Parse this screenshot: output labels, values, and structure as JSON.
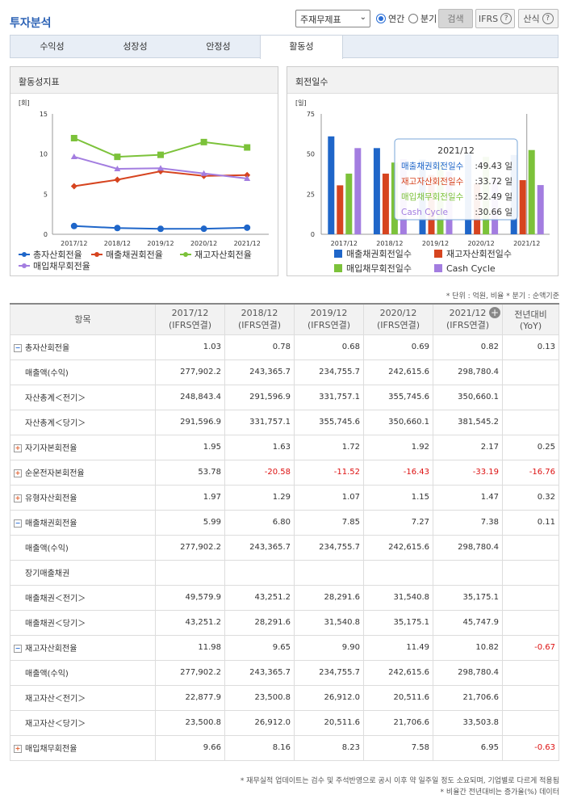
{
  "header": {
    "title": "투자분석",
    "select_value": "주재무제표",
    "radio_annual": "연간",
    "radio_quarter": "분기",
    "search_label": "검색",
    "ifrs_label": "IFRS",
    "formula_label": "산식",
    "help": "?"
  },
  "tabs": [
    {
      "label": "수익성",
      "active": false
    },
    {
      "label": "성장성",
      "active": false
    },
    {
      "label": "안정성",
      "active": false
    },
    {
      "label": "활동성",
      "active": true
    }
  ],
  "left_chart": {
    "title": "활동성지표",
    "unit": "[회]",
    "chart_data": {
      "type": "line",
      "categories": [
        "2017/12",
        "2018/12",
        "2019/12",
        "2020/12",
        "2021/12"
      ],
      "ylim": [
        0,
        15
      ],
      "yticks": [
        "15",
        "10",
        "5",
        "0"
      ],
      "series": [
        {
          "name": "총자산회전율",
          "color": "#1f66c9",
          "marker": "circle",
          "values": [
            1.03,
            0.78,
            0.68,
            0.69,
            0.82
          ]
        },
        {
          "name": "매출채권회전율",
          "color": "#d6441f",
          "marker": "diamond",
          "values": [
            5.99,
            6.8,
            7.85,
            7.27,
            7.38
          ]
        },
        {
          "name": "재고자산회전율",
          "color": "#7cc23a",
          "marker": "square",
          "values": [
            11.98,
            9.65,
            9.9,
            11.49,
            10.82
          ]
        },
        {
          "name": "매입채무회전율",
          "color": "#a37de0",
          "marker": "triangle",
          "values": [
            9.66,
            8.16,
            8.23,
            7.58,
            6.95
          ]
        }
      ]
    }
  },
  "right_chart": {
    "title": "회전일수",
    "unit": "[일]",
    "chart_data": {
      "type": "bar",
      "categories": [
        "2017/12",
        "2018/12",
        "2019/12",
        "2020/12",
        "2021/12"
      ],
      "ylim": [
        0,
        75
      ],
      "yticks": [
        "75",
        "50",
        "25",
        "0"
      ],
      "series": [
        {
          "name": "매출채권회전일수",
          "color": "#1f66c9",
          "values": [
            61.0,
            53.7,
            46.5,
            50.2,
            49.43
          ]
        },
        {
          "name": "재고자산회전일수",
          "color": "#d6441f",
          "values": [
            30.5,
            37.8,
            36.9,
            31.8,
            33.72
          ]
        },
        {
          "name": "매입채무회전일수",
          "color": "#7cc23a",
          "values": [
            37.8,
            44.7,
            44.4,
            48.2,
            52.49
          ]
        },
        {
          "name": "Cash Cycle",
          "color": "#a37de0",
          "values": [
            53.7,
            46.8,
            39.0,
            33.8,
            30.66
          ]
        }
      ]
    },
    "tooltip": {
      "title": "2021/12",
      "rows": [
        {
          "label": "매출채권회전일수",
          "value": ":49.43 일",
          "color": "#1f66c9"
        },
        {
          "label": "재고자산회전일수",
          "value": ":33.72 일",
          "color": "#d6441f"
        },
        {
          "label": "매입채무회전일수",
          "value": ":52.49 일",
          "color": "#7cc23a"
        },
        {
          "label": "Cash Cycle",
          "value": ":30.66 일",
          "color": "#a37de0"
        }
      ]
    }
  },
  "note": "* 단위 : 억원, 비율   * 분기 : 순액기준",
  "table": {
    "head": [
      "항목",
      "2017/12\n(IFRS연결)",
      "2018/12\n(IFRS연결)",
      "2019/12\n(IFRS연결)",
      "2020/12\n(IFRS연결)",
      "2021/12\n(IFRS연결)",
      "전년대비\n(YoY)"
    ],
    "rows": [
      {
        "label": "총자산회전율",
        "icon": "minus",
        "cells": [
          "1.03",
          "0.78",
          "0.68",
          "0.69",
          "0.82",
          "0.13"
        ]
      },
      {
        "label": "매출액(수익)",
        "sub": true,
        "cells": [
          "277,902.2",
          "243,365.7",
          "234,755.7",
          "242,615.6",
          "298,780.4",
          ""
        ]
      },
      {
        "label": "자산총계＜전기＞",
        "sub": true,
        "cells": [
          "248,843.4",
          "291,596.9",
          "331,757.1",
          "355,745.6",
          "350,660.1",
          ""
        ]
      },
      {
        "label": "자산총계＜당기＞",
        "sub": true,
        "cells": [
          "291,596.9",
          "331,757.1",
          "355,745.6",
          "350,660.1",
          "381,545.2",
          ""
        ]
      },
      {
        "label": "자기자본회전율",
        "icon": "plus",
        "cells": [
          "1.95",
          "1.63",
          "1.72",
          "1.92",
          "2.17",
          "0.25"
        ]
      },
      {
        "label": "순운전자본회전율",
        "icon": "plus",
        "cells": [
          "53.78",
          "-20.58",
          "-11.52",
          "-16.43",
          "-33.19",
          "-16.76"
        ]
      },
      {
        "label": "유형자산회전율",
        "icon": "plus",
        "cells": [
          "1.97",
          "1.29",
          "1.07",
          "1.15",
          "1.47",
          "0.32"
        ]
      },
      {
        "label": "매출채권회전율",
        "icon": "minus",
        "cells": [
          "5.99",
          "6.80",
          "7.85",
          "7.27",
          "7.38",
          "0.11"
        ]
      },
      {
        "label": "매출액(수익)",
        "sub": true,
        "cells": [
          "277,902.2",
          "243,365.7",
          "234,755.7",
          "242,615.6",
          "298,780.4",
          ""
        ]
      },
      {
        "label": "장기매출채권",
        "sub": true,
        "cells": [
          "",
          "",
          "",
          "",
          "",
          ""
        ]
      },
      {
        "label": "매출채권＜전기＞",
        "sub": true,
        "cells": [
          "49,579.9",
          "43,251.2",
          "28,291.6",
          "31,540.8",
          "35,175.1",
          ""
        ]
      },
      {
        "label": "매출채권＜당기＞",
        "sub": true,
        "cells": [
          "43,251.2",
          "28,291.6",
          "31,540.8",
          "35,175.1",
          "45,747.9",
          ""
        ]
      },
      {
        "label": "재고자산회전율",
        "icon": "minus",
        "cells": [
          "11.98",
          "9.65",
          "9.90",
          "11.49",
          "10.82",
          "-0.67"
        ]
      },
      {
        "label": "매출액(수익)",
        "sub": true,
        "cells": [
          "277,902.2",
          "243,365.7",
          "234,755.7",
          "242,615.6",
          "298,780.4",
          ""
        ]
      },
      {
        "label": "재고자산＜전기＞",
        "sub": true,
        "cells": [
          "22,877.9",
          "23,500.8",
          "26,912.0",
          "20,511.6",
          "21,706.6",
          ""
        ]
      },
      {
        "label": "재고자산＜당기＞",
        "sub": true,
        "cells": [
          "23,500.8",
          "26,912.0",
          "20,511.6",
          "21,706.6",
          "33,503.8",
          ""
        ]
      },
      {
        "label": "매입채무회전율",
        "icon": "plus",
        "cells": [
          "9.66",
          "8.16",
          "8.23",
          "7.58",
          "6.95",
          "-0.63"
        ]
      }
    ]
  },
  "footnotes": [
    "* 재무실적 업데이트는 검수 및 주석반영으로 공시 이후 약 일주일 정도 소요되며, 기업별로 다르게 적용됨",
    "* 비율간 전년대비는 증가율(%) 데이터"
  ]
}
